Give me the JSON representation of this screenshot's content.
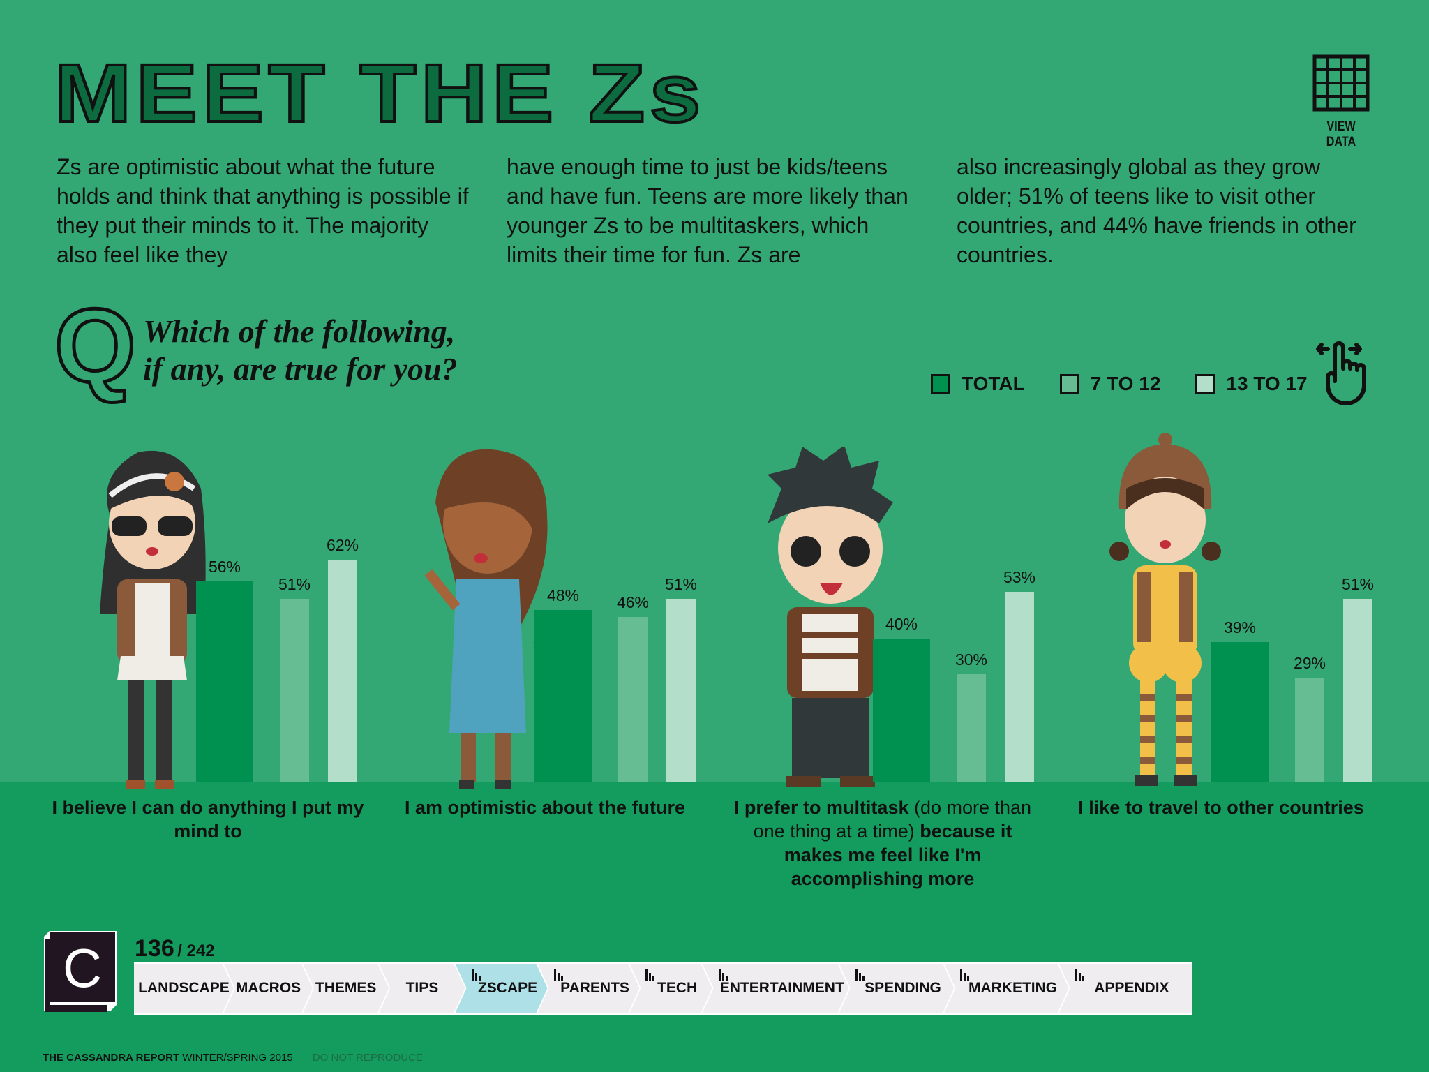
{
  "title": "MEET THE Zs",
  "view_data": {
    "label": "VIEW DATA",
    "icon": "grid-icon"
  },
  "intro_columns": [
    "Zs are optimistic about what the future holds and think that anything is possible if they put their minds to it. The majority also feel like they",
    "have enough time to just be kids/teens and have fun. Teens are more likely than younger Zs to be multitaskers, which limits their time for fun. Zs are",
    "also increasingly global as they grow older; 51% of teens like to visit other countries, and 44% have friends in other countries."
  ],
  "question": {
    "letter": "Q",
    "line1": "Which of the following,",
    "line2": "if any, are true for you?"
  },
  "swipe_icon": "swipe-hand-icon",
  "colors": {
    "background": "#33a874",
    "ground": "#149b5e",
    "total": "#009150",
    "age_7_12": "#66bd94",
    "age_13_17": "#b3dfca",
    "active_tab": "#aee0e8"
  },
  "chart_data": {
    "type": "bar",
    "legend": [
      "TOTAL",
      "7 TO 12",
      "13 TO 17"
    ],
    "legend_placement": "top-right",
    "unit": "%",
    "ylim": [
      0,
      100
    ],
    "categories": [
      {
        "bold1": "I believe I can do anything I put my mind to",
        "light": "",
        "bold2": ""
      },
      {
        "bold1": "I am optimistic about the future",
        "light": "",
        "bold2": ""
      },
      {
        "bold1": "I prefer to multitask",
        "light": " (do more than one thing at a time) ",
        "bold2": "because it makes me feel like I'm accomplishing more"
      },
      {
        "bold1": "I like to travel to other countries",
        "light": "",
        "bold2": ""
      }
    ],
    "series": [
      {
        "name": "TOTAL",
        "values": [
          56,
          48,
          40,
          39
        ]
      },
      {
        "name": "7 TO 12",
        "values": [
          51,
          46,
          30,
          29
        ]
      },
      {
        "name": "13 TO 17",
        "values": [
          62,
          51,
          53,
          51
        ]
      }
    ]
  },
  "pagination": {
    "current": "136",
    "total": "/ 242"
  },
  "nav": {
    "tabs": [
      {
        "label": "LANDSCAPE",
        "icon": false,
        "active": false
      },
      {
        "label": "MACROS",
        "icon": false,
        "active": false
      },
      {
        "label": "THEMES",
        "icon": false,
        "active": false
      },
      {
        "label": "TIPS",
        "icon": false,
        "active": false
      },
      {
        "label": "ZSCAPE",
        "icon": true,
        "active": true
      },
      {
        "label": "PARENTS",
        "icon": true,
        "active": false
      },
      {
        "label": "TECH",
        "icon": true,
        "active": false
      },
      {
        "label": "ENTERTAINMENT",
        "icon": true,
        "active": false
      },
      {
        "label": "SPENDING",
        "icon": true,
        "active": false
      },
      {
        "label": "MARKETING",
        "icon": true,
        "active": false
      },
      {
        "label": "APPENDIX",
        "icon": true,
        "active": false
      }
    ]
  },
  "logo_letter": "C",
  "footer": {
    "brand": "THE CASSANDRA REPORT",
    "edition": "WINTER/SPRING 2015",
    "notice": "DO NOT REPRODUCE"
  }
}
